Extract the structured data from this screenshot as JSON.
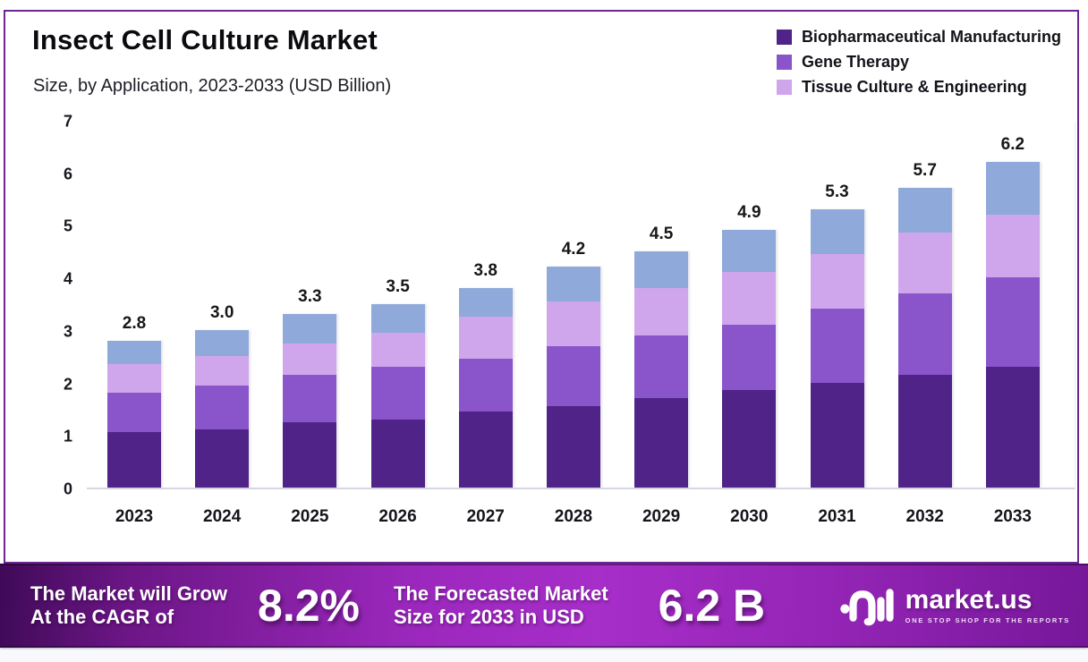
{
  "header": {
    "title": "Insect Cell Culture Market",
    "subtitle": "Size, by Application, 2023-2033 (USD Billion)"
  },
  "legend": [
    {
      "label": "Biopharmaceutical Manufacturing",
      "color": "#4F2387"
    },
    {
      "label": "Gene Therapy",
      "color": "#8A54CA"
    },
    {
      "label": "Tissue Culture & Engineering",
      "color": "#CFA6EC"
    }
  ],
  "chart_data": {
    "type": "bar",
    "stacked": true,
    "title": "Insect Cell Culture Market",
    "subtitle": "Size, by Application, 2023-2033 (USD Billion)",
    "unit": "USD Billion",
    "categories": [
      "2023",
      "2024",
      "2025",
      "2026",
      "2027",
      "2028",
      "2029",
      "2030",
      "2031",
      "2032",
      "2033"
    ],
    "series": [
      {
        "name": "Biopharmaceutical Manufacturing",
        "color": "#4F2387",
        "in_legend": true,
        "values": [
          1.05,
          1.1,
          1.25,
          1.3,
          1.45,
          1.55,
          1.7,
          1.85,
          2.0,
          2.15,
          2.3
        ]
      },
      {
        "name": "Gene Therapy",
        "color": "#8A54CA",
        "in_legend": true,
        "values": [
          0.75,
          0.85,
          0.9,
          1.0,
          1.0,
          1.15,
          1.2,
          1.25,
          1.4,
          1.55,
          1.7
        ]
      },
      {
        "name": "Tissue Culture & Engineering",
        "color": "#CFA6EC",
        "in_legend": true,
        "values": [
          0.55,
          0.55,
          0.6,
          0.65,
          0.8,
          0.85,
          0.9,
          1.0,
          1.05,
          1.15,
          1.2
        ]
      },
      {
        "name": "",
        "color": "#8FA9DA",
        "in_legend": false,
        "values": [
          0.45,
          0.5,
          0.55,
          0.55,
          0.55,
          0.65,
          0.7,
          0.8,
          0.85,
          0.85,
          1.0
        ]
      }
    ],
    "totals": [
      "2.8",
      "3.0",
      "3.3",
      "3.5",
      "3.8",
      "4.2",
      "4.5",
      "4.9",
      "5.3",
      "5.7",
      "6.2"
    ],
    "ylim": [
      0,
      7
    ],
    "yticks": [
      0,
      1,
      2,
      3,
      4,
      5,
      6,
      7
    ],
    "grid": false,
    "legend_position": "top-right"
  },
  "footer": {
    "cagr_line1": "The Market will Grow",
    "cagr_line2": "At the CAGR of",
    "cagr_value": "8.2%",
    "forecast_line1": "The Forecasted Market",
    "forecast_line2": "Size for 2033 in USD",
    "forecast_value": "6.2 B",
    "brand": {
      "name": "market.us",
      "tagline": "ONE STOP SHOP FOR THE REPORTS",
      "icon": "marketus-logo-icon"
    }
  },
  "colors": {
    "card_border": "#6b2694",
    "axis_line": "#d7d7df",
    "banner_gradient": [
      "#3f0a57",
      "#9b28bd",
      "#a72ec9",
      "#76179a"
    ]
  }
}
